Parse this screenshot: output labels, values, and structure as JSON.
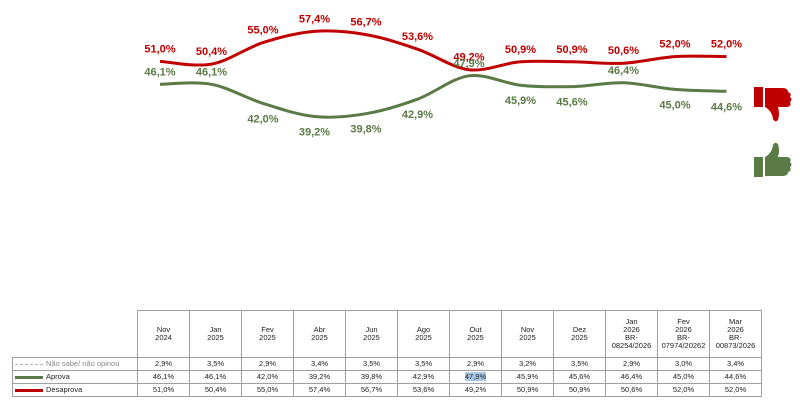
{
  "colors": {
    "aprova": "#5a7a46",
    "desaprova": "#c00000",
    "nao_sabe": "#b8b8b8",
    "highlight": "#a8c8e8"
  },
  "icons": {
    "desaprova": "thumbs-down-icon",
    "aprova": "thumbs-up-icon"
  },
  "chart_data": {
    "type": "line",
    "categories": [
      "Nov\n2024",
      "Jan\n2025",
      "Fev\n2025",
      "Abr\n2025",
      "Jun\n2025",
      "Ago\n2025",
      "Out\n2025",
      "Nov\n2025",
      "Dez\n2025",
      "Jan\n2026\nBR-\n08254/2026",
      "Fev\n2026\nBR-\n07974/20262",
      "Mar\n2026\nBR-\n00873/2026"
    ],
    "series": [
      {
        "name": "Não sabe/ não opinou",
        "values": [
          2.9,
          3.5,
          2.9,
          3.4,
          3.5,
          3.5,
          2.9,
          3.2,
          3.5,
          2.9,
          3.0,
          3.4
        ],
        "table_values": [
          "2,9%",
          "3,5%",
          "2,9%",
          "3,4%",
          "3,5%",
          "3,5%",
          "2,9%",
          "3,2%",
          "3,5%",
          "2,9%",
          "3,0%",
          "3,4%"
        ]
      },
      {
        "name": "Aprova",
        "values": [
          46.1,
          46.1,
          42.0,
          39.2,
          39.8,
          42.9,
          47.9,
          45.9,
          45.6,
          46.4,
          45.0,
          44.6
        ],
        "labels": [
          "46,1%",
          "46,1%",
          "42,0%",
          "39,2%",
          "39,8%",
          "42,9%",
          "47,9%",
          "45,9%",
          "45,6%",
          "46,4%",
          "45,0%",
          "44,6%"
        ],
        "table_values": [
          "46,1%",
          "46,1%",
          "42,0%",
          "39,2%",
          "39,8%",
          "42,9%",
          "47,9%",
          "45,9%",
          "45,6%",
          "46,4%",
          "45,0%",
          "44,6%"
        ]
      },
      {
        "name": "Desaprova",
        "values": [
          51.0,
          50.4,
          55.0,
          57.4,
          56.7,
          53.6,
          49.2,
          50.9,
          50.9,
          50.6,
          52.0,
          52.0
        ],
        "labels": [
          "51,0%",
          "50,4%",
          "55,0%",
          "57,4%",
          "56,7%",
          "53,6%",
          "49,2%",
          "50,9%",
          "50,9%",
          "50,6%",
          "52,0%",
          "52,0%"
        ],
        "table_values": [
          "51,0%",
          "50,4%",
          "55,0%",
          "57,4%",
          "56,7%",
          "53,6%",
          "49,2%",
          "50,9%",
          "50,9%",
          "50,6%",
          "52,0%",
          "52,0%"
        ]
      }
    ],
    "highlighted_cell": {
      "series": "Aprova",
      "category_index": 6
    },
    "grid": false,
    "legend": "table-bottom"
  }
}
